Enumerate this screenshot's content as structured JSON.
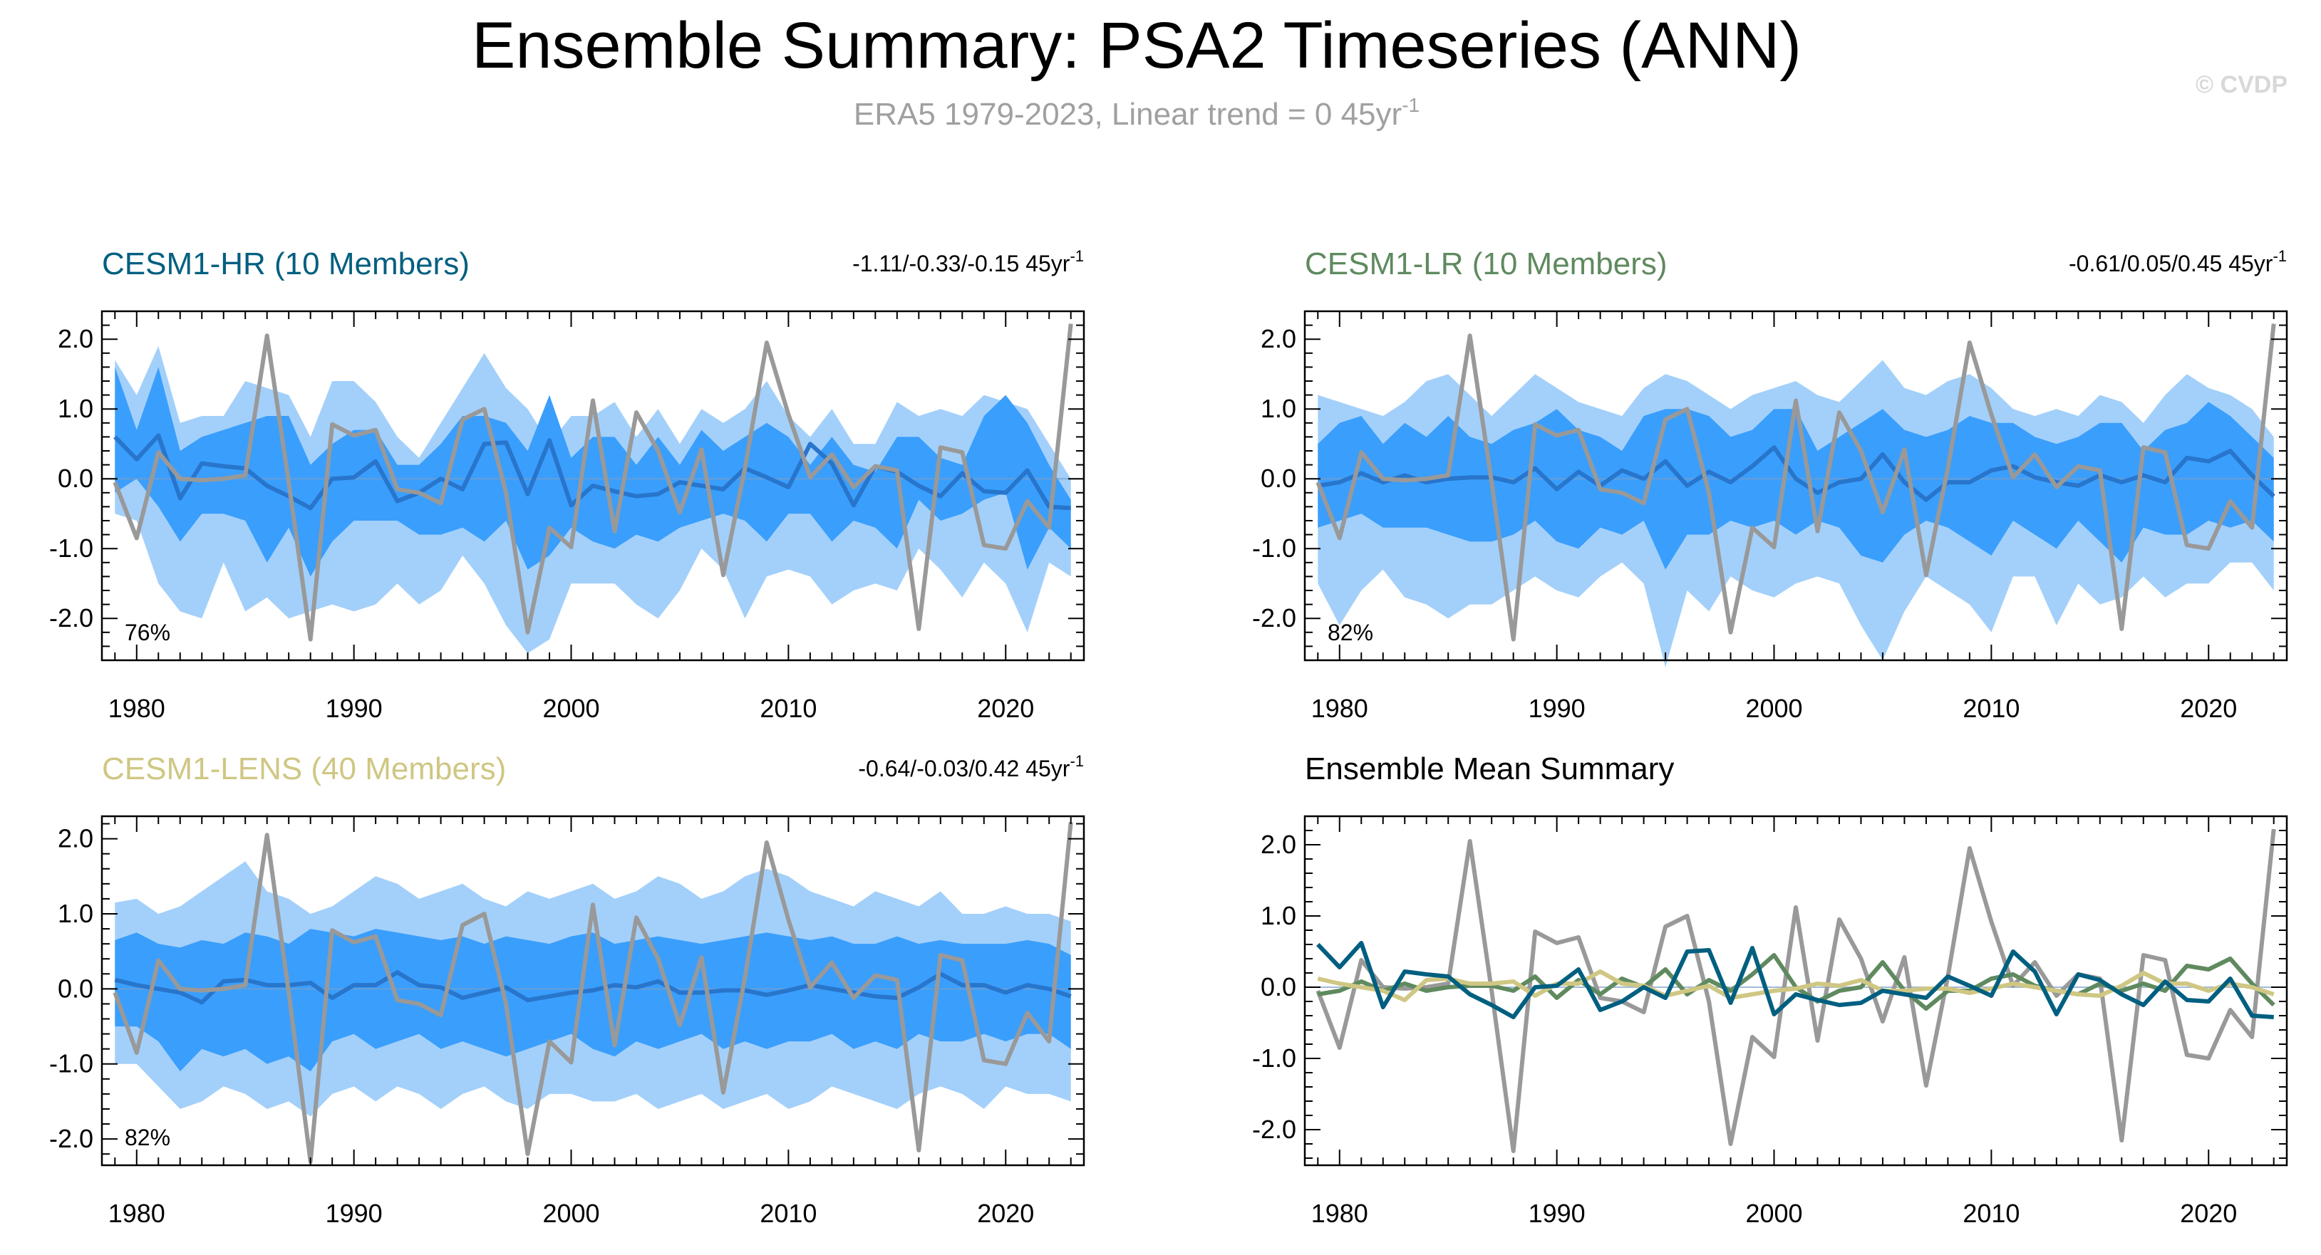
{
  "header": {
    "title": "Ensemble Summary: PSA2 Timeseries (ANN)",
    "subtitle": "ERA5 1979-2023, Linear trend = 0 45yr",
    "subtitle_sup": "-1",
    "copyright": "© CVDP"
  },
  "colors": {
    "observed": "#999999",
    "band_outer": "#a3d0fa",
    "band_inner": "#3a9efc",
    "ens_mean_line": "#2875cc",
    "cesm1_hr": "#005f80",
    "cesm1_lr": "#5f8a5f",
    "cesm1_lens": "#cfc783"
  },
  "chart_data": [
    {
      "type": "area",
      "title": "CESM1-HR (10 Members)",
      "title_color": "#005f80",
      "trend_text": "-1.11/-0.33/-0.15 45yr",
      "trend_sup": "-1",
      "percent_label": "76%",
      "x_start": 1979,
      "x_end": 2023,
      "xlim": [
        1978.4,
        2023.6
      ],
      "ylim": [
        -2.6,
        2.4
      ],
      "yticks": [
        -2.0,
        -1.0,
        0.0,
        1.0,
        2.0
      ],
      "yticklabels": [
        "-2.0",
        "-1.0",
        "0.0",
        "1.0",
        "2.0"
      ],
      "xticks": [
        1980,
        1990,
        2000,
        2010,
        2020
      ],
      "xticklabels": [
        "1980",
        "1990",
        "2000",
        "2010",
        "2020"
      ],
      "band_outer_upper": [
        1.7,
        1.2,
        1.9,
        0.8,
        0.9,
        0.9,
        1.4,
        1.3,
        1.2,
        0.6,
        1.4,
        1.4,
        1.1,
        0.6,
        0.3,
        0.8,
        1.3,
        1.8,
        1.3,
        1.0,
        0.5,
        0.9,
        0.9,
        1.1,
        0.6,
        1.0,
        0.5,
        1.0,
        0.8,
        1.0,
        1.4,
        0.9,
        0.6,
        1.0,
        0.5,
        0.5,
        1.1,
        0.9,
        1.0,
        0.9,
        1.2,
        1.1,
        1.0,
        0.5,
        0.0
      ],
      "band_outer_lower": [
        -0.5,
        -0.6,
        -1.5,
        -1.9,
        -2.0,
        -1.2,
        -1.9,
        -1.7,
        -2.0,
        -1.9,
        -1.8,
        -1.9,
        -1.8,
        -1.5,
        -1.8,
        -1.6,
        -1.1,
        -1.5,
        -2.1,
        -2.5,
        -2.3,
        -1.5,
        -1.5,
        -1.5,
        -1.8,
        -2.0,
        -1.6,
        -1.0,
        -1.3,
        -2.0,
        -1.4,
        -1.3,
        -1.4,
        -1.8,
        -1.6,
        -1.5,
        -1.6,
        -1.0,
        -1.3,
        -1.7,
        -1.2,
        -1.5,
        -2.2,
        -1.2,
        -1.4
      ],
      "band_inner_upper": [
        1.6,
        0.7,
        1.6,
        0.4,
        0.6,
        0.7,
        0.8,
        0.9,
        0.9,
        0.2,
        0.5,
        0.7,
        0.7,
        0.2,
        0.2,
        0.5,
        0.9,
        0.9,
        0.8,
        0.4,
        1.2,
        0.3,
        0.6,
        0.6,
        0.2,
        0.6,
        0.2,
        0.7,
        0.4,
        0.6,
        0.8,
        0.6,
        0.2,
        0.6,
        0.2,
        0.1,
        0.6,
        0.6,
        0.3,
        0.2,
        0.9,
        1.2,
        0.8,
        0.2,
        -0.3
      ],
      "band_inner_lower": [
        -0.2,
        0.0,
        -0.4,
        -0.9,
        -0.5,
        -0.5,
        -0.6,
        -1.2,
        -0.7,
        -1.4,
        -0.9,
        -0.6,
        -0.6,
        -0.6,
        -0.8,
        -0.8,
        -0.7,
        -0.9,
        -0.6,
        -1.3,
        -1.1,
        -0.7,
        -0.9,
        -1.0,
        -0.8,
        -0.9,
        -0.7,
        -0.6,
        -0.5,
        -0.6,
        -0.9,
        -0.5,
        -0.5,
        -0.9,
        -0.6,
        -0.7,
        -1.0,
        -0.3,
        -0.6,
        -0.5,
        -0.3,
        -0.2,
        -1.3,
        -0.7,
        -1.0
      ],
      "ens_mean": [
        0.6,
        0.28,
        0.62,
        -0.28,
        0.22,
        0.18,
        0.15,
        -0.1,
        -0.25,
        -0.42,
        0.0,
        0.02,
        0.25,
        -0.32,
        -0.2,
        0.0,
        -0.15,
        0.5,
        0.52,
        -0.22,
        0.55,
        -0.38,
        -0.1,
        -0.18,
        -0.25,
        -0.22,
        -0.05,
        -0.1,
        -0.15,
        0.15,
        0.02,
        -0.12,
        0.5,
        0.22,
        -0.38,
        0.18,
        0.1,
        -0.1,
        -0.25,
        0.08,
        -0.18,
        -0.2,
        0.12,
        -0.4,
        -0.42
      ],
      "observed": [
        -0.05,
        -0.85,
        0.38,
        0.0,
        -0.02,
        0.0,
        0.05,
        2.05,
        -0.05,
        -2.3,
        0.78,
        0.62,
        0.7,
        -0.15,
        -0.2,
        -0.35,
        0.85,
        1.0,
        -0.2,
        -2.2,
        -0.7,
        -0.98,
        1.12,
        -0.75,
        0.95,
        0.4,
        -0.48,
        0.42,
        -1.38,
        0.15,
        1.95,
        0.92,
        0.02,
        0.35,
        -0.12,
        0.18,
        0.12,
        -2.15,
        0.45,
        0.38,
        -0.95,
        -1.0,
        -0.32,
        -0.7,
        2.22
      ]
    },
    {
      "type": "area",
      "title": "CESM1-LR (10 Members)",
      "title_color": "#5f8a5f",
      "trend_text": "-0.61/0.05/0.45 45yr",
      "trend_sup": "-1",
      "percent_label": "82%",
      "x_start": 1979,
      "x_end": 2023,
      "xlim": [
        1978.4,
        2023.6
      ],
      "ylim": [
        -2.6,
        2.4
      ],
      "yticks": [
        -2.0,
        -1.0,
        0.0,
        1.0,
        2.0
      ],
      "yticklabels": [
        "-2.0",
        "-1.0",
        "0.0",
        "1.0",
        "2.0"
      ],
      "xticks": [
        1980,
        1990,
        2000,
        2010,
        2020
      ],
      "xticklabels": [
        "1980",
        "1990",
        "2000",
        "2010",
        "2020"
      ],
      "band_outer_upper": [
        1.2,
        1.1,
        1.0,
        0.9,
        1.1,
        1.4,
        1.5,
        1.2,
        0.9,
        1.2,
        1.5,
        1.3,
        1.1,
        1.0,
        0.9,
        1.3,
        1.5,
        1.4,
        1.2,
        1.0,
        1.2,
        1.3,
        1.4,
        1.2,
        1.1,
        1.4,
        1.7,
        1.3,
        1.2,
        1.4,
        1.5,
        1.3,
        1.0,
        0.9,
        1.0,
        0.9,
        1.2,
        1.1,
        0.8,
        1.2,
        1.5,
        1.3,
        1.2,
        1.0,
        0.6
      ],
      "band_outer_lower": [
        -1.5,
        -2.1,
        -1.6,
        -1.3,
        -1.7,
        -1.8,
        -2.0,
        -1.8,
        -1.8,
        -1.6,
        -1.4,
        -1.6,
        -1.7,
        -1.4,
        -1.2,
        -1.5,
        -2.7,
        -1.6,
        -1.9,
        -1.4,
        -1.6,
        -1.7,
        -1.5,
        -1.4,
        -1.5,
        -2.1,
        -2.6,
        -1.9,
        -1.4,
        -1.6,
        -1.8,
        -2.2,
        -1.4,
        -1.4,
        -2.1,
        -1.5,
        -1.8,
        -1.7,
        -1.4,
        -1.7,
        -1.5,
        -1.5,
        -1.2,
        -1.2,
        -1.6
      ],
      "band_inner_upper": [
        0.5,
        0.8,
        0.9,
        0.5,
        0.8,
        0.6,
        0.9,
        0.6,
        0.5,
        0.7,
        0.8,
        1.0,
        0.7,
        0.6,
        0.4,
        0.9,
        1.0,
        1.0,
        0.9,
        0.6,
        0.7,
        1.0,
        1.0,
        0.4,
        0.6,
        0.8,
        1.0,
        0.7,
        0.6,
        0.7,
        0.9,
        0.8,
        0.8,
        0.6,
        0.5,
        0.6,
        0.8,
        0.8,
        0.4,
        0.7,
        0.8,
        1.1,
        0.9,
        0.6,
        0.3
      ],
      "band_inner_lower": [
        -0.7,
        -0.6,
        -0.5,
        -0.7,
        -0.7,
        -0.7,
        -0.8,
        -0.9,
        -0.9,
        -0.8,
        -0.6,
        -0.9,
        -1.0,
        -0.7,
        -0.8,
        -0.6,
        -1.3,
        -0.8,
        -0.8,
        -0.6,
        -0.7,
        -0.6,
        -0.8,
        -0.6,
        -0.7,
        -1.1,
        -1.2,
        -0.8,
        -0.6,
        -0.7,
        -0.9,
        -1.1,
        -0.6,
        -0.8,
        -1.0,
        -0.6,
        -0.9,
        -1.2,
        -0.7,
        -0.8,
        -0.8,
        -0.6,
        -0.7,
        -0.6,
        -0.9
      ],
      "ens_mean": [
        -0.1,
        -0.05,
        0.08,
        -0.05,
        0.05,
        -0.05,
        0.0,
        0.02,
        0.02,
        -0.05,
        0.15,
        -0.15,
        0.1,
        -0.1,
        0.12,
        0.0,
        0.25,
        -0.1,
        0.1,
        -0.05,
        0.18,
        0.45,
        0.0,
        -0.2,
        -0.05,
        0.0,
        0.35,
        -0.05,
        -0.3,
        -0.05,
        -0.05,
        0.12,
        0.18,
        0.02,
        -0.05,
        -0.1,
        0.05,
        -0.05,
        0.05,
        -0.05,
        0.3,
        0.25,
        0.4,
        0.05,
        -0.25
      ],
      "observed": [
        -0.05,
        -0.85,
        0.38,
        0.0,
        -0.02,
        0.0,
        0.05,
        2.05,
        -0.05,
        -2.3,
        0.78,
        0.62,
        0.7,
        -0.15,
        -0.2,
        -0.35,
        0.85,
        1.0,
        -0.2,
        -2.2,
        -0.7,
        -0.98,
        1.12,
        -0.75,
        0.95,
        0.4,
        -0.48,
        0.42,
        -1.38,
        0.15,
        1.95,
        0.92,
        0.02,
        0.35,
        -0.12,
        0.18,
        0.12,
        -2.15,
        0.45,
        0.38,
        -0.95,
        -1.0,
        -0.32,
        -0.7,
        2.22
      ]
    },
    {
      "type": "area",
      "title": "CESM1-LENS (40 Members)",
      "title_color": "#cfc783",
      "trend_text": "-0.64/-0.03/0.42 45yr",
      "trend_sup": "-1",
      "percent_label": "82%",
      "x_start": 1979,
      "x_end": 2023,
      "xlim": [
        1978.4,
        2023.6
      ],
      "ylim": [
        -2.35,
        2.3
      ],
      "yticks": [
        -2.0,
        -1.0,
        0.0,
        1.0,
        2.0
      ],
      "yticklabels": [
        "-2.0",
        "-1.0",
        "0.0",
        "1.0",
        "2.0"
      ],
      "xticks": [
        1980,
        1990,
        2000,
        2010,
        2020
      ],
      "xticklabels": [
        "1980",
        "1990",
        "2000",
        "2010",
        "2020"
      ],
      "band_outer_upper": [
        1.15,
        1.2,
        1.0,
        1.1,
        1.3,
        1.5,
        1.7,
        1.3,
        1.2,
        1.0,
        1.1,
        1.3,
        1.5,
        1.4,
        1.2,
        1.3,
        1.4,
        1.2,
        1.1,
        1.3,
        1.2,
        1.3,
        1.4,
        1.2,
        1.3,
        1.5,
        1.4,
        1.2,
        1.3,
        1.5,
        1.6,
        1.5,
        1.3,
        1.2,
        1.1,
        1.3,
        1.2,
        1.1,
        1.3,
        1.0,
        1.0,
        1.1,
        1.0,
        1.0,
        0.9
      ],
      "band_outer_lower": [
        -1.0,
        -1.0,
        -1.3,
        -1.6,
        -1.5,
        -1.3,
        -1.4,
        -1.6,
        -1.5,
        -1.7,
        -1.4,
        -1.3,
        -1.5,
        -1.3,
        -1.4,
        -1.6,
        -1.4,
        -1.3,
        -1.5,
        -1.6,
        -1.4,
        -1.4,
        -1.5,
        -1.5,
        -1.4,
        -1.6,
        -1.5,
        -1.4,
        -1.6,
        -1.5,
        -1.4,
        -1.6,
        -1.5,
        -1.3,
        -1.4,
        -1.5,
        -1.6,
        -1.4,
        -1.3,
        -1.4,
        -1.6,
        -1.3,
        -1.4,
        -1.4,
        -1.5
      ],
      "band_inner_upper": [
        0.65,
        0.75,
        0.6,
        0.55,
        0.65,
        0.6,
        0.75,
        0.7,
        0.6,
        0.8,
        0.75,
        0.7,
        0.8,
        0.75,
        0.7,
        0.65,
        0.7,
        0.6,
        0.7,
        0.65,
        0.6,
        0.7,
        0.75,
        0.6,
        0.65,
        0.7,
        0.65,
        0.6,
        0.65,
        0.7,
        0.75,
        0.7,
        0.65,
        0.7,
        0.6,
        0.6,
        0.7,
        0.6,
        0.65,
        0.6,
        0.6,
        0.6,
        0.65,
        0.6,
        0.45
      ],
      "band_inner_lower": [
        -0.5,
        -0.5,
        -0.7,
        -1.1,
        -0.8,
        -0.9,
        -0.8,
        -1.0,
        -0.9,
        -1.1,
        -0.7,
        -0.6,
        -0.8,
        -0.7,
        -0.6,
        -0.8,
        -0.7,
        -0.8,
        -0.9,
        -0.8,
        -0.7,
        -0.6,
        -0.8,
        -0.9,
        -0.7,
        -0.8,
        -0.7,
        -0.6,
        -0.8,
        -0.7,
        -0.8,
        -0.7,
        -0.7,
        -0.6,
        -0.8,
        -0.7,
        -0.8,
        -0.6,
        -0.7,
        -0.7,
        -0.6,
        -0.7,
        -0.6,
        -0.6,
        -0.8
      ],
      "ens_mean": [
        0.12,
        0.05,
        0.0,
        -0.05,
        -0.18,
        0.1,
        0.12,
        0.05,
        0.05,
        0.08,
        -0.12,
        0.05,
        0.05,
        0.22,
        0.05,
        0.02,
        -0.12,
        -0.05,
        0.02,
        -0.15,
        -0.1,
        -0.05,
        -0.02,
        0.05,
        0.02,
        0.1,
        -0.05,
        -0.05,
        -0.02,
        -0.02,
        -0.08,
        -0.02,
        0.05,
        0.0,
        -0.05,
        -0.1,
        -0.12,
        0.02,
        0.2,
        0.05,
        0.05,
        -0.05,
        0.05,
        0.0,
        -0.1
      ],
      "observed": [
        -0.05,
        -0.85,
        0.38,
        0.0,
        -0.02,
        0.0,
        0.05,
        2.05,
        -0.05,
        -2.3,
        0.78,
        0.62,
        0.7,
        -0.15,
        -0.2,
        -0.35,
        0.85,
        1.0,
        -0.2,
        -2.2,
        -0.7,
        -0.98,
        1.12,
        -0.75,
        0.95,
        0.4,
        -0.48,
        0.42,
        -1.38,
        0.15,
        1.95,
        0.92,
        0.02,
        0.35,
        -0.12,
        0.18,
        0.12,
        -2.15,
        0.45,
        0.38,
        -0.95,
        -1.0,
        -0.32,
        -0.7,
        2.22
      ]
    },
    {
      "type": "line",
      "title": "Ensemble Mean Summary",
      "title_color": "#000000",
      "x_start": 1979,
      "x_end": 2023,
      "xlim": [
        1978.4,
        2023.6
      ],
      "ylim": [
        -2.5,
        2.4
      ],
      "yticks": [
        -2.0,
        -1.0,
        0.0,
        1.0,
        2.0
      ],
      "yticklabels": [
        "-2.0",
        "-1.0",
        "0.0",
        "1.0",
        "2.0"
      ],
      "xticks": [
        1980,
        1990,
        2000,
        2010,
        2020
      ],
      "xticklabels": [
        "1980",
        "1990",
        "2000",
        "2010",
        "2020"
      ],
      "series": [
        {
          "key": "observed",
          "color": "#999999",
          "values": [
            -0.05,
            -0.85,
            0.38,
            0.0,
            -0.02,
            0.0,
            0.05,
            2.05,
            -0.05,
            -2.3,
            0.78,
            0.62,
            0.7,
            -0.15,
            -0.2,
            -0.35,
            0.85,
            1.0,
            -0.2,
            -2.2,
            -0.7,
            -0.98,
            1.12,
            -0.75,
            0.95,
            0.4,
            -0.48,
            0.42,
            -1.38,
            0.15,
            1.95,
            0.92,
            0.02,
            0.35,
            -0.12,
            0.18,
            0.12,
            -2.15,
            0.45,
            0.38,
            -0.95,
            -1.0,
            -0.32,
            -0.7,
            2.22
          ]
        },
        {
          "key": "cesm1_lr",
          "color": "#5f8a5f",
          "values": [
            -0.1,
            -0.05,
            0.08,
            -0.05,
            0.05,
            -0.05,
            0.0,
            0.02,
            0.02,
            -0.05,
            0.15,
            -0.15,
            0.1,
            -0.1,
            0.12,
            0.0,
            0.25,
            -0.1,
            0.1,
            -0.05,
            0.18,
            0.45,
            0.0,
            -0.2,
            -0.05,
            0.0,
            0.35,
            -0.05,
            -0.3,
            -0.05,
            -0.05,
            0.12,
            0.18,
            0.02,
            -0.05,
            -0.1,
            0.05,
            -0.05,
            0.05,
            -0.05,
            0.3,
            0.25,
            0.4,
            0.05,
            -0.25
          ]
        },
        {
          "key": "cesm1_lens",
          "color": "#cfc783",
          "values": [
            0.12,
            0.05,
            0.0,
            -0.05,
            -0.18,
            0.1,
            0.12,
            0.05,
            0.05,
            0.08,
            -0.12,
            0.05,
            0.05,
            0.22,
            0.05,
            0.02,
            -0.12,
            -0.05,
            0.02,
            -0.15,
            -0.1,
            -0.05,
            -0.02,
            0.05,
            0.02,
            0.1,
            -0.05,
            -0.05,
            -0.02,
            -0.02,
            -0.08,
            -0.02,
            0.05,
            0.0,
            -0.05,
            -0.1,
            -0.12,
            0.02,
            0.2,
            0.05,
            0.05,
            -0.05,
            0.05,
            0.0,
            -0.1
          ]
        },
        {
          "key": "cesm1_hr",
          "color": "#005f80",
          "values": [
            0.6,
            0.28,
            0.62,
            -0.28,
            0.22,
            0.18,
            0.15,
            -0.1,
            -0.25,
            -0.42,
            0.0,
            0.02,
            0.25,
            -0.32,
            -0.2,
            0.0,
            -0.15,
            0.5,
            0.52,
            -0.22,
            0.55,
            -0.38,
            -0.1,
            -0.18,
            -0.25,
            -0.22,
            -0.05,
            -0.1,
            -0.15,
            0.15,
            0.02,
            -0.12,
            0.5,
            0.22,
            -0.38,
            0.18,
            0.1,
            -0.1,
            -0.25,
            0.08,
            -0.18,
            -0.2,
            0.12,
            -0.4,
            -0.42
          ]
        }
      ]
    }
  ]
}
